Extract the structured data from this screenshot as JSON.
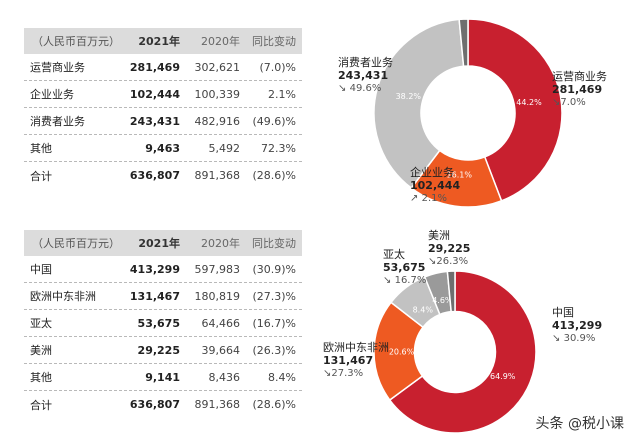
{
  "colors": {
    "red": "#c8202f",
    "orange": "#ee5a22",
    "gray_light": "#c2c2c2",
    "gray_mid": "#9a9a9a",
    "gray_dark": "#6e6e6e",
    "header_bg": "#dcdcdc"
  },
  "table1": {
    "headers": [
      "（人民币百万元）",
      "2021年",
      "2020年",
      "同比变动"
    ],
    "rows": [
      {
        "name": "运营商业务",
        "v2021": "281,469",
        "v2020": "302,621",
        "chg": "(7.0)%"
      },
      {
        "name": "企业业务",
        "v2021": "102,444",
        "v2020": "100,339",
        "chg": "2.1%"
      },
      {
        "name": "消费者业务",
        "v2021": "243,431",
        "v2020": "482,916",
        "chg": "(49.6)%"
      },
      {
        "name": "其他",
        "v2021": "9,463",
        "v2020": "5,492",
        "chg": "72.3%"
      },
      {
        "name": "合计",
        "v2021": "636,807",
        "v2020": "891,368",
        "chg": "(28.6)%"
      }
    ]
  },
  "table2": {
    "headers": [
      "（人民币百万元）",
      "2021年",
      "2020年",
      "同比变动"
    ],
    "rows": [
      {
        "name": "中国",
        "v2021": "413,299",
        "v2020": "597,983",
        "chg": "(30.9)%"
      },
      {
        "name": "欧洲中东非洲",
        "v2021": "131,467",
        "v2020": "180,819",
        "chg": "(27.3)%"
      },
      {
        "name": "亚太",
        "v2021": "53,675",
        "v2020": "64,466",
        "chg": "(16.7)%"
      },
      {
        "name": "美洲",
        "v2021": "29,225",
        "v2020": "39,664",
        "chg": "(26.3)%"
      },
      {
        "name": "其他",
        "v2021": "9,141",
        "v2020": "8,436",
        "chg": "8.4%"
      },
      {
        "name": "合计",
        "v2021": "636,807",
        "v2020": "891,368",
        "chg": "(28.6)%"
      }
    ]
  },
  "chart_data": [
    {
      "type": "pie",
      "slices": [
        {
          "name": "运营商业务",
          "value": 44.2,
          "label": "44.2%",
          "amount": "281,469",
          "change": "7.0%",
          "color": "#c8202f"
        },
        {
          "name": "企业业务",
          "value": 16.1,
          "label": "16.1%",
          "amount": "102,444",
          "change": "2.1%",
          "color": "#ee5a22"
        },
        {
          "name": "消费者业务",
          "value": 38.2,
          "label": "38.2%",
          "amount": "243,431",
          "change": "49.6%",
          "color": "#c2c2c2"
        },
        {
          "name": "其他",
          "value": 1.5,
          "label": "",
          "amount": "",
          "change": "",
          "color": "#6e6e6e"
        }
      ]
    },
    {
      "type": "pie",
      "slices": [
        {
          "name": "中国",
          "value": 64.9,
          "label": "64.9%",
          "amount": "413,299",
          "change": "30.9%",
          "color": "#c8202f"
        },
        {
          "name": "欧洲中东非洲",
          "value": 20.6,
          "label": "20.6%",
          "amount": "131,467",
          "change": "27.3%",
          "color": "#ee5a22"
        },
        {
          "name": "亚太",
          "value": 8.4,
          "label": "8.4%",
          "amount": "53,675",
          "change": "16.7%",
          "color": "#c2c2c2"
        },
        {
          "name": "美洲",
          "value": 4.6,
          "label": "4.6%",
          "amount": "29,225",
          "change": "26.3%",
          "color": "#9a9a9a"
        },
        {
          "name": "其他",
          "value": 1.5,
          "label": "",
          "amount": "",
          "change": "",
          "color": "#6e6e6e"
        }
      ]
    }
  ],
  "watermark": "头条 @税小课"
}
